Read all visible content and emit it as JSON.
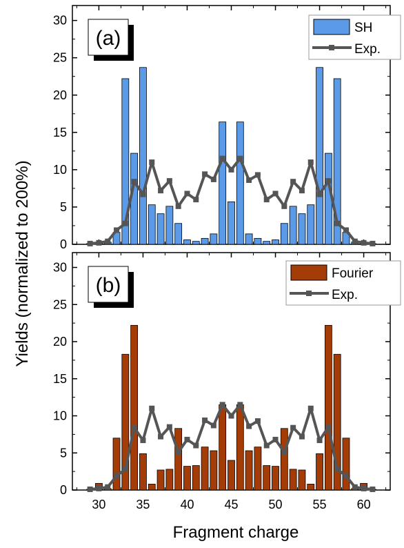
{
  "ylabel": "Yields (normalized to 200%)",
  "xlabel": "Fragment charge",
  "colors": {
    "sh_bar": "#5a9ae6",
    "fourier_bar": "#a33c06",
    "exp_line": "#555555",
    "bar_edge": "#000000"
  },
  "chart_data": [
    {
      "type": "bar",
      "panel": "(a)",
      "xlim": [
        27,
        63
      ],
      "ylim": [
        0,
        32
      ],
      "yticks": [
        "0",
        "5",
        "10",
        "15",
        "20",
        "25",
        "30"
      ],
      "grid": false,
      "legend_position": "top-right",
      "series": [
        {
          "name": "SH",
          "kind": "bar",
          "x": [
            29,
            30,
            31,
            32,
            33,
            34,
            35,
            36,
            37,
            38,
            39,
            40,
            41,
            42,
            43,
            44,
            45,
            46,
            47,
            48,
            49,
            50,
            51,
            52,
            53,
            54,
            55,
            56,
            57,
            58,
            59,
            60,
            61
          ],
          "values": [
            0.1,
            0.2,
            0.3,
            1.6,
            22.2,
            12.2,
            23.7,
            5.3,
            4.1,
            5.1,
            2.8,
            0.6,
            0.4,
            0.8,
            1.4,
            16.4,
            5.7,
            16.4,
            1.4,
            0.8,
            0.4,
            0.6,
            2.8,
            5.1,
            4.1,
            5.3,
            23.7,
            12.2,
            22.2,
            1.6,
            0.3,
            0.2,
            0.1
          ]
        },
        {
          "name": "Exp.",
          "kind": "line",
          "x": [
            29,
            30,
            31,
            32,
            33,
            34,
            35,
            36,
            37,
            38,
            39,
            40,
            41,
            42,
            43,
            44,
            45,
            46,
            47,
            48,
            49,
            50,
            51,
            52,
            53,
            54,
            55,
            56,
            57,
            58,
            59,
            60,
            61
          ],
          "values": [
            0.1,
            0.2,
            0.4,
            1.9,
            2.8,
            8.4,
            6.7,
            11.0,
            7.2,
            8.5,
            5.1,
            6.8,
            6.0,
            9.4,
            8.7,
            11.5,
            10.0,
            11.5,
            8.6,
            9.3,
            6.0,
            6.8,
            5.1,
            8.4,
            7.2,
            11.0,
            6.7,
            8.5,
            2.8,
            1.9,
            0.4,
            0.2,
            0.1
          ]
        }
      ]
    },
    {
      "type": "bar",
      "panel": "(b)",
      "xlim": [
        27,
        63
      ],
      "ylim": [
        0,
        32
      ],
      "xticks": [
        "30",
        "35",
        "40",
        "45",
        "50",
        "55",
        "60"
      ],
      "yticks": [
        "0",
        "5",
        "10",
        "15",
        "20",
        "25",
        "30"
      ],
      "grid": false,
      "legend_position": "top-right",
      "series": [
        {
          "name": "Fourier",
          "kind": "bar",
          "x": [
            29,
            30,
            31,
            32,
            33,
            34,
            35,
            36,
            37,
            38,
            39,
            40,
            41,
            42,
            43,
            44,
            45,
            46,
            47,
            48,
            49,
            50,
            51,
            52,
            53,
            54,
            55,
            56,
            57,
            58,
            59,
            60,
            61
          ],
          "values": [
            0.1,
            0.9,
            0.2,
            7.0,
            18.3,
            22.2,
            4.9,
            0.8,
            2.7,
            2.8,
            8.3,
            3.2,
            3.3,
            5.8,
            5.3,
            11.5,
            4.0,
            11.5,
            5.3,
            5.8,
            3.3,
            3.2,
            8.3,
            2.8,
            2.7,
            0.8,
            4.9,
            22.2,
            18.3,
            7.0,
            0.2,
            0.9,
            0.1
          ]
        },
        {
          "name": "Exp.",
          "kind": "line",
          "x": [
            29,
            30,
            31,
            32,
            33,
            34,
            35,
            36,
            37,
            38,
            39,
            40,
            41,
            42,
            43,
            44,
            45,
            46,
            47,
            48,
            49,
            50,
            51,
            52,
            53,
            54,
            55,
            56,
            57,
            58,
            59,
            60,
            61
          ],
          "values": [
            0.1,
            0.2,
            0.4,
            1.9,
            2.8,
            8.4,
            6.7,
            11.0,
            7.2,
            8.5,
            5.1,
            6.8,
            6.0,
            9.4,
            8.7,
            11.5,
            10.0,
            11.5,
            8.6,
            9.3,
            6.0,
            6.8,
            5.1,
            8.4,
            7.2,
            11.0,
            6.7,
            8.5,
            2.8,
            1.9,
            0.4,
            0.2,
            0.1
          ]
        }
      ]
    }
  ]
}
